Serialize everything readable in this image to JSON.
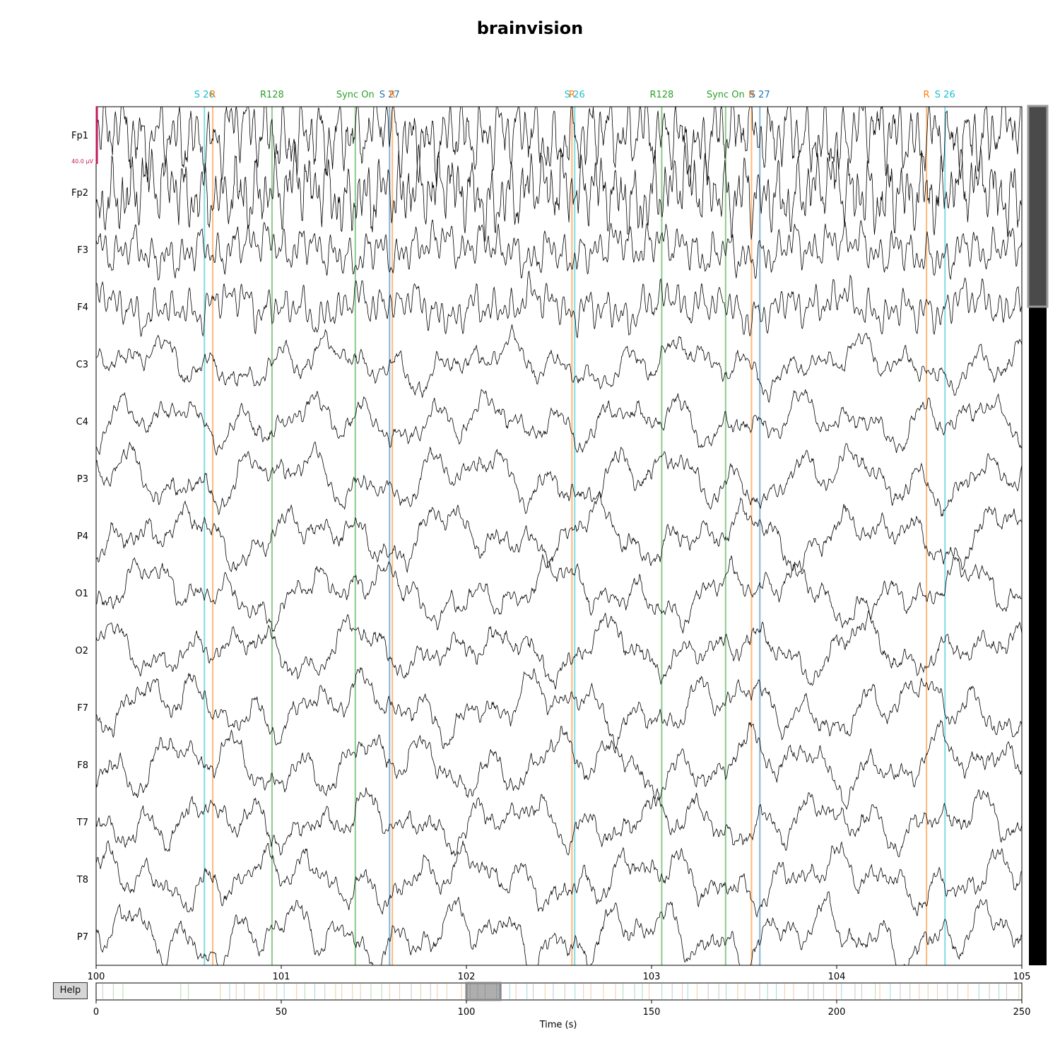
{
  "title": "brainvision",
  "help_label": "Help",
  "colors": {
    "trace": "#000000",
    "scale_bar": "#c2185b",
    "S 26": "#17becf",
    "S 27": "#1f77b4",
    "R": "#ff7f0e",
    "R128": "#2ca02c",
    "Sync On": "#2ca02c"
  },
  "chart_data": {
    "type": "line",
    "channels": [
      "Fp1",
      "Fp2",
      "F3",
      "F4",
      "C3",
      "C4",
      "P3",
      "P4",
      "O1",
      "O2",
      "F7",
      "F8",
      "T7",
      "T8",
      "P7"
    ],
    "scale_bar_label": "40.0 µV",
    "x_range": [
      100,
      105
    ],
    "x_ticks": [
      100,
      101,
      102,
      103,
      104,
      105
    ],
    "annotations": [
      {
        "t": 100.585,
        "label": "S 26"
      },
      {
        "t": 100.63,
        "label": "R"
      },
      {
        "t": 100.95,
        "label": "R128"
      },
      {
        "t": 101.4,
        "label": "Sync On"
      },
      {
        "t": 101.585,
        "label": "S 27"
      },
      {
        "t": 101.6,
        "label": "R"
      },
      {
        "t": 102.57,
        "label": "R"
      },
      {
        "t": 102.585,
        "label": "S 26"
      },
      {
        "t": 103.055,
        "label": "R128"
      },
      {
        "t": 103.4,
        "label": "Sync On"
      },
      {
        "t": 103.54,
        "label": "R"
      },
      {
        "t": 103.585,
        "label": "S 27"
      },
      {
        "t": 104.485,
        "label": "R"
      },
      {
        "t": 104.585,
        "label": "S 26"
      }
    ],
    "overview": {
      "xlabel": "Time (s)",
      "x_range": [
        0,
        250
      ],
      "x_ticks": [
        0,
        50,
        100,
        150,
        200,
        250
      ],
      "view_window": [
        100,
        105
      ]
    }
  }
}
